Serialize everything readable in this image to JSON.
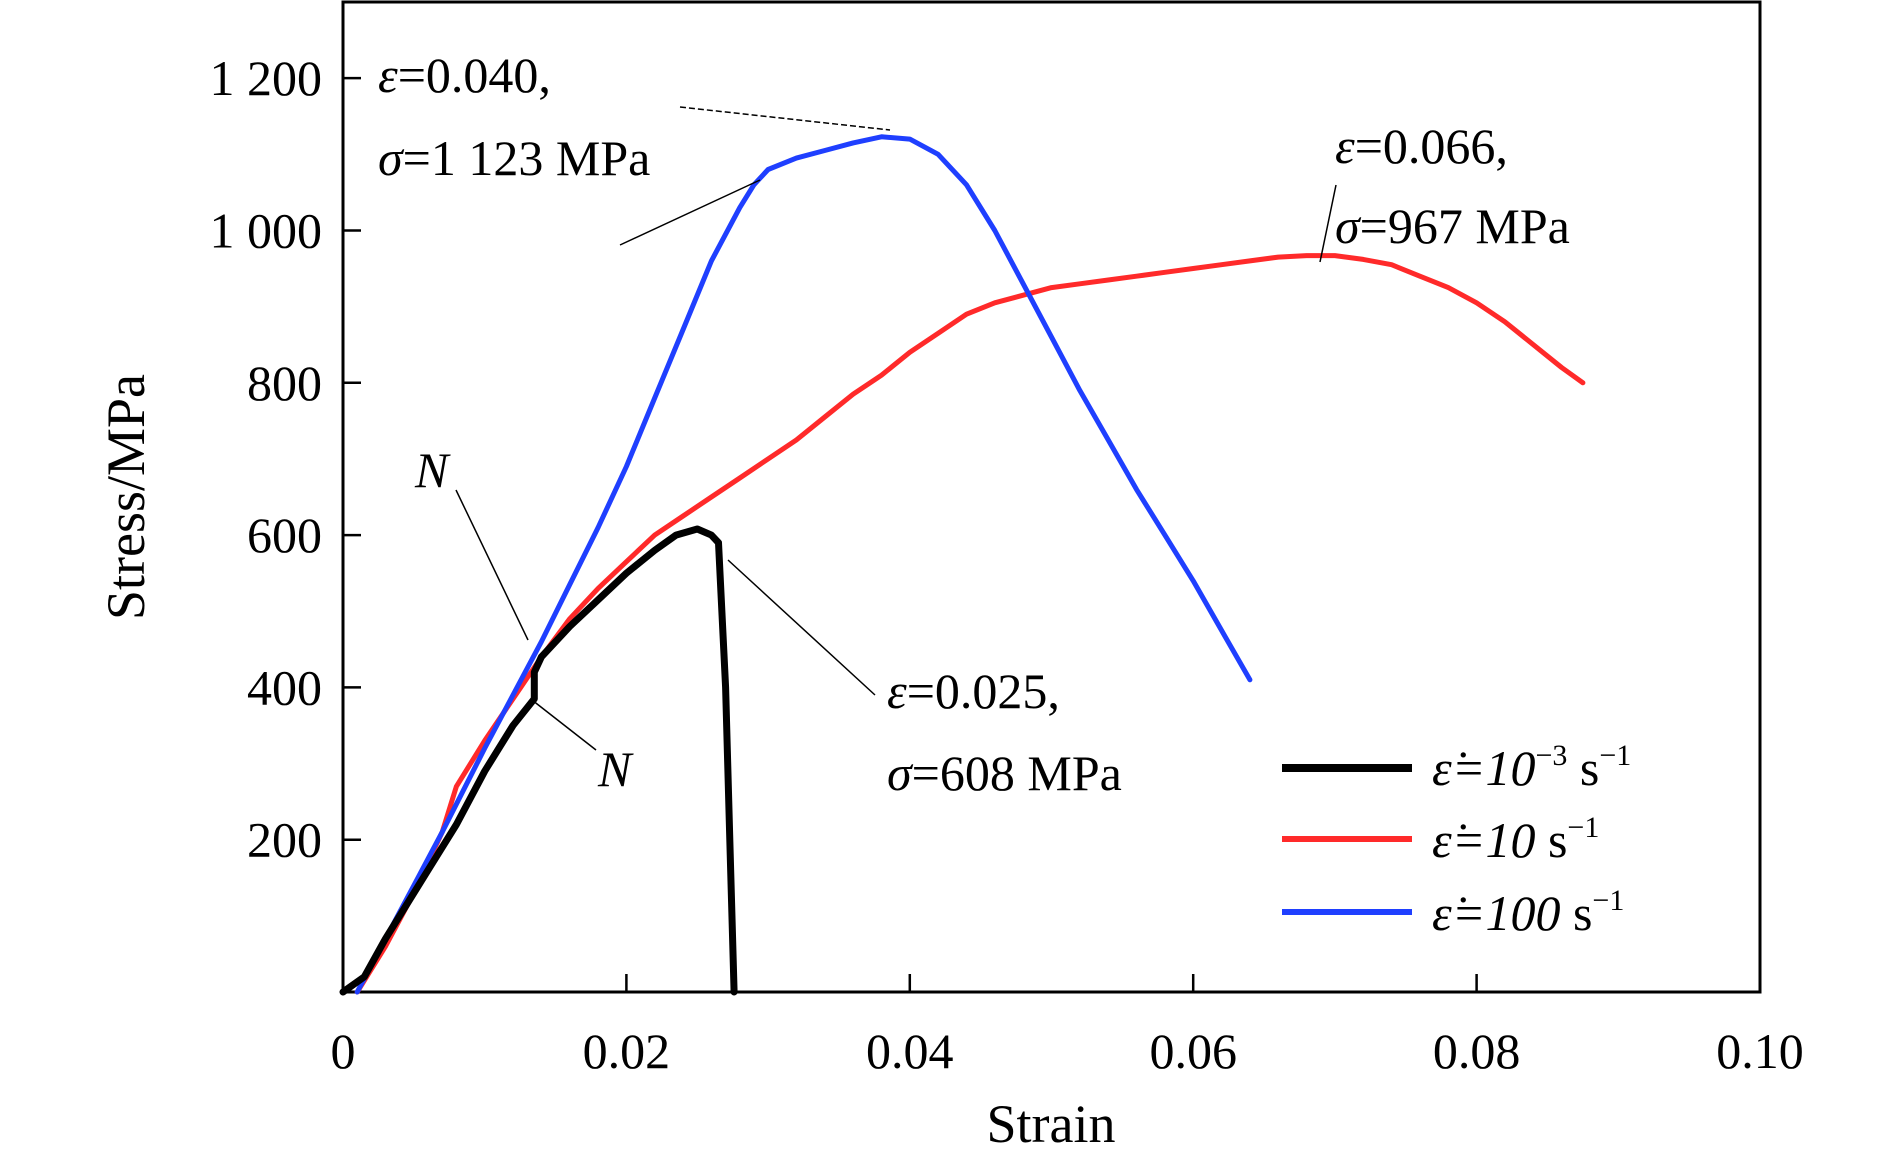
{
  "chart_data": {
    "type": "line",
    "title": "",
    "xlabel": "Strain",
    "ylabel": "Stress/MPa",
    "xlim": [
      0,
      0.1
    ],
    "ylim": [
      0,
      1300
    ],
    "x_ticks": [
      0,
      0.02,
      0.04,
      0.06,
      0.08,
      0.1
    ],
    "x_tick_labels": [
      "0",
      "0.02",
      "0.04",
      "0.06",
      "0.08",
      "0.10"
    ],
    "y_ticks": [
      200,
      400,
      600,
      800,
      1000,
      1200
    ],
    "y_tick_labels": [
      "200",
      "400",
      "600",
      "800",
      "1 000",
      "1 200"
    ],
    "grid": false,
    "legend_position": "bottom-right",
    "series": [
      {
        "name": "ε̇=10⁻³ s⁻¹",
        "legend": {
          "lhs": "ε̇=10",
          "sup": "−3",
          "unit": " s",
          "unit_sup": "−1"
        },
        "color": "#000000",
        "x": [
          0.0,
          0.0015,
          0.003,
          0.004,
          0.006,
          0.008,
          0.01,
          0.012,
          0.0135,
          0.0135,
          0.014,
          0.016,
          0.018,
          0.02,
          0.022,
          0.0235,
          0.025,
          0.026,
          0.0265,
          0.027,
          0.0273,
          0.0276
        ],
        "y": [
          0,
          20,
          70,
          100,
          160,
          220,
          290,
          350,
          385,
          420,
          440,
          480,
          515,
          550,
          580,
          600,
          608,
          600,
          590,
          400,
          200,
          0
        ]
      },
      {
        "name": "ε̇=10 s⁻¹",
        "legend": {
          "lhs": "ε̇=10",
          "sup": "",
          "unit": " s",
          "unit_sup": "−1"
        },
        "color": "#ff2a2a",
        "x": [
          0.001,
          0.003,
          0.005,
          0.007,
          0.008,
          0.01,
          0.012,
          0.014,
          0.016,
          0.018,
          0.02,
          0.022,
          0.024,
          0.026,
          0.028,
          0.03,
          0.032,
          0.034,
          0.036,
          0.038,
          0.04,
          0.042,
          0.044,
          0.046,
          0.048,
          0.05,
          0.052,
          0.054,
          0.056,
          0.058,
          0.06,
          0.062,
          0.064,
          0.066,
          0.068,
          0.07,
          0.072,
          0.074,
          0.076,
          0.078,
          0.08,
          0.082,
          0.084,
          0.086,
          0.0875
        ],
        "y": [
          0,
          60,
          130,
          210,
          270,
          330,
          385,
          440,
          490,
          530,
          565,
          600,
          625,
          650,
          675,
          700,
          725,
          755,
          785,
          810,
          840,
          865,
          890,
          905,
          915,
          925,
          930,
          935,
          940,
          945,
          950,
          955,
          960,
          965,
          967,
          967,
          962,
          955,
          940,
          925,
          905,
          880,
          850,
          820,
          800
        ]
      },
      {
        "name": "ε̇=100 s⁻¹",
        "legend": {
          "lhs": "ε̇=100",
          "sup": "",
          "unit": " s",
          "unit_sup": "−1"
        },
        "color": "#1f3fff",
        "x": [
          0.001,
          0.003,
          0.005,
          0.007,
          0.01,
          0.012,
          0.014,
          0.016,
          0.018,
          0.02,
          0.022,
          0.024,
          0.026,
          0.028,
          0.029,
          0.03,
          0.032,
          0.034,
          0.036,
          0.038,
          0.04,
          0.042,
          0.044,
          0.046,
          0.048,
          0.05,
          0.052,
          0.054,
          0.056,
          0.058,
          0.06,
          0.062,
          0.064
        ],
        "y": [
          0,
          70,
          140,
          210,
          320,
          390,
          460,
          535,
          610,
          690,
          780,
          870,
          960,
          1030,
          1060,
          1080,
          1095,
          1105,
          1115,
          1123,
          1120,
          1100,
          1060,
          1000,
          930,
          860,
          790,
          725,
          660,
          600,
          540,
          475,
          410
        ]
      }
    ],
    "annotations": [
      {
        "line1": {
          "var": "ε",
          "text": "=0.040,"
        },
        "line2": {
          "var": "σ",
          "text": "=1 123 MPa"
        }
      },
      {
        "line1": {
          "var": "ε",
          "text": "=0.066,"
        },
        "line2": {
          "var": "σ",
          "text": "=967 MPa"
        }
      },
      {
        "line1": {
          "var": "ε",
          "text": "=0.025,"
        },
        "line2": {
          "var": "σ",
          "text": "=608 MPa"
        }
      },
      {
        "label": "N"
      },
      {
        "label": "N"
      }
    ]
  }
}
